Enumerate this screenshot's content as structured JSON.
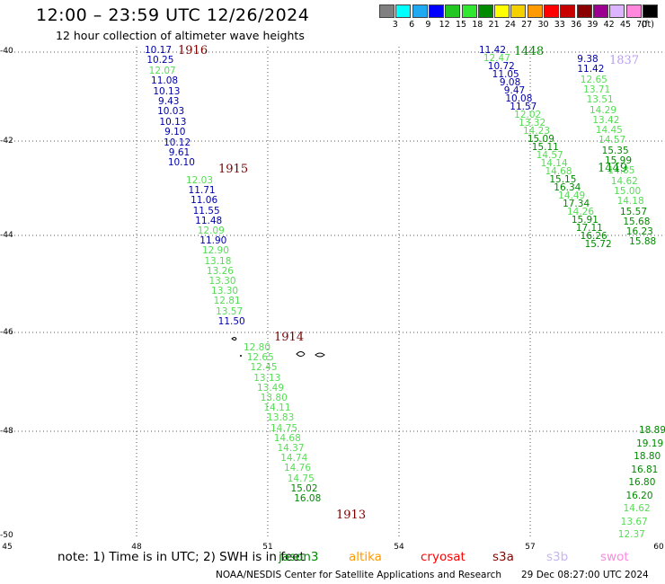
{
  "title": "12:00 – 23:59 UTC 12/26/2024",
  "subtitle": "12 hour collection of altimeter wave heights",
  "legend": {
    "labels": [
      "3",
      "6",
      "9",
      "12",
      "15",
      "18",
      "21",
      "24",
      "27",
      "30",
      "33",
      "36",
      "39",
      "42",
      "45",
      "70",
      "(ft)"
    ],
    "colors": [
      "#808080",
      "#00ffff",
      "#1fa9f2",
      "#0000ff",
      "#22c722",
      "#30e830",
      "#008a00",
      "#ffff00",
      "#f5d000",
      "#ff9a00",
      "#ff0000",
      "#c80000",
      "#8b0000",
      "#9b0090",
      "#dcb4ff",
      "#ff88dd",
      "#000000"
    ]
  },
  "map": {
    "y_ticks": [
      "-40",
      "-42",
      "-44",
      "-46",
      "-48",
      "-50"
    ],
    "x_ticks": [
      "45",
      "48",
      "51",
      "54",
      "57",
      "60"
    ],
    "land_note": "small islands near 50.5E, 46.6S"
  },
  "tracks": [
    {
      "pass": "1916",
      "pass_color": "#7a0000",
      "values": [
        [
          "10.17",
          "#0000aa"
        ],
        [
          "10.25",
          "#0000aa"
        ],
        [
          "12.07",
          "#55dd55"
        ],
        [
          "11.08",
          "#0000aa"
        ],
        [
          "10.13",
          "#0000aa"
        ],
        [
          "9.43",
          "#0000aa"
        ],
        [
          "10.03",
          "#0000aa"
        ],
        [
          "10.13",
          "#0000aa"
        ],
        [
          "9.10",
          "#0000aa"
        ],
        [
          "10.12",
          "#0000aa"
        ],
        [
          "9.61",
          "#0000aa"
        ],
        [
          "10.10",
          "#0000aa"
        ]
      ]
    },
    {
      "pass": "1915",
      "pass_color": "#7a0000",
      "values": [
        [
          "12.03",
          "#55dd55"
        ],
        [
          "11.71",
          "#0000aa"
        ],
        [
          "11.06",
          "#0000aa"
        ],
        [
          "11.55",
          "#0000aa"
        ],
        [
          "11.48",
          "#0000aa"
        ],
        [
          "12.09",
          "#55dd55"
        ],
        [
          "11.90",
          "#0000aa"
        ],
        [
          "12.90",
          "#55dd55"
        ],
        [
          "13.18",
          "#55dd55"
        ],
        [
          "13.26",
          "#55dd55"
        ],
        [
          "13.30",
          "#55dd55"
        ],
        [
          "13.30",
          "#55dd55"
        ],
        [
          "12.81",
          "#55dd55"
        ],
        [
          "13.57",
          "#55dd55"
        ],
        [
          "11.50",
          "#0000aa"
        ]
      ]
    },
    {
      "pass": "1914",
      "pass_color": "#7a0000",
      "values": [
        [
          "12.80",
          "#55dd55"
        ],
        [
          "12.65",
          "#55dd55"
        ],
        [
          "12.45",
          "#55dd55"
        ],
        [
          "13.13",
          "#55dd55"
        ],
        [
          "13.49",
          "#55dd55"
        ],
        [
          "13.80",
          "#55dd55"
        ],
        [
          "14.11",
          "#55dd55"
        ],
        [
          "13.83",
          "#55dd55"
        ],
        [
          "14.75",
          "#55dd55"
        ],
        [
          "14.68",
          "#55dd55"
        ],
        [
          "14.37",
          "#55dd55"
        ],
        [
          "14.74",
          "#55dd55"
        ],
        [
          "14.76",
          "#55dd55"
        ],
        [
          "14.75",
          "#55dd55"
        ],
        [
          "15.02",
          "#008a00"
        ],
        [
          "16.08",
          "#008a00"
        ]
      ]
    },
    {
      "pass": "1913",
      "pass_color": "#7a0000",
      "values": []
    },
    {
      "pass": "1448",
      "pass_color": "#008a00",
      "values": [
        [
          "11.42",
          "#0000aa"
        ],
        [
          "12.47",
          "#55dd55"
        ],
        [
          "10.72",
          "#0000aa"
        ],
        [
          "11.05",
          "#0000aa"
        ],
        [
          "9.08",
          "#0000aa"
        ],
        [
          "9.47",
          "#0000aa"
        ],
        [
          "10.08",
          "#0000aa"
        ],
        [
          "11.57",
          "#0000aa"
        ],
        [
          "12.02",
          "#55dd55"
        ],
        [
          "13.32",
          "#55dd55"
        ],
        [
          "14.23",
          "#55dd55"
        ],
        [
          "15.09",
          "#008a00"
        ],
        [
          "15.11",
          "#008a00"
        ],
        [
          "14.57",
          "#55dd55"
        ],
        [
          "14.14",
          "#55dd55"
        ],
        [
          "14.68",
          "#55dd55"
        ],
        [
          "15.15",
          "#008a00"
        ],
        [
          "16.34",
          "#008a00"
        ],
        [
          "14.49",
          "#55dd55"
        ],
        [
          "17.34",
          "#008a00"
        ],
        [
          "14.26",
          "#55dd55"
        ],
        [
          "15.91",
          "#008a00"
        ],
        [
          "17.11",
          "#008a00"
        ],
        [
          "16.26",
          "#008a00"
        ],
        [
          "15.72",
          "#008a00"
        ]
      ]
    },
    {
      "pass": "1837",
      "pass_color": "#b8a0f0",
      "values": [
        [
          "9.38",
          "#0000aa"
        ],
        [
          "11.42",
          "#0000aa"
        ],
        [
          "12.65",
          "#55dd55"
        ],
        [
          "13.71",
          "#55dd55"
        ],
        [
          "13.51",
          "#55dd55"
        ],
        [
          "14.29",
          "#55dd55"
        ],
        [
          "13.42",
          "#55dd55"
        ],
        [
          "14.45",
          "#55dd55"
        ],
        [
          "14.57",
          "#55dd55"
        ],
        [
          "15.35",
          "#008a00"
        ],
        [
          "15.99",
          "#008a00"
        ],
        [
          "14.85",
          "#55dd55"
        ],
        [
          "14.62",
          "#55dd55"
        ],
        [
          "15.00",
          "#55dd55"
        ],
        [
          "14.18",
          "#55dd55"
        ],
        [
          "15.57",
          "#008a00"
        ],
        [
          "15.68",
          "#008a00"
        ],
        [
          "16.23",
          "#008a00"
        ],
        [
          "15.88",
          "#008a00"
        ]
      ]
    },
    {
      "pass": "1449",
      "pass_color": "#008a00",
      "values": []
    },
    {
      "pass": "",
      "pass_color": "#008a00",
      "values": [
        [
          "18.89",
          "#008a00"
        ],
        [
          "19.19",
          "#008a00"
        ],
        [
          "18.80",
          "#008a00"
        ],
        [
          "16.81",
          "#008a00"
        ],
        [
          "16.80",
          "#008a00"
        ],
        [
          "16.20",
          "#008a00"
        ],
        [
          "14.62",
          "#55dd55"
        ],
        [
          "13.67",
          "#55dd55"
        ],
        [
          "12.37",
          "#55dd55"
        ]
      ]
    }
  ],
  "note": "note: 1) Time is in UTC; 2) SWH is in feet",
  "satellites": [
    {
      "name": "jason3",
      "color": "#008a00"
    },
    {
      "name": "altika",
      "color": "#ff9a00"
    },
    {
      "name": "cryosat",
      "color": "#ff0000"
    },
    {
      "name": "s3a",
      "color": "#8b0000"
    },
    {
      "name": "s3b",
      "color": "#c8b4f0"
    },
    {
      "name": "swot",
      "color": "#ff88dd"
    }
  ],
  "credit": "NOAA/NESDIS Center for Satellite Applications and Research",
  "timestamp": "29 Dec 08:27:00 UTC 2024"
}
